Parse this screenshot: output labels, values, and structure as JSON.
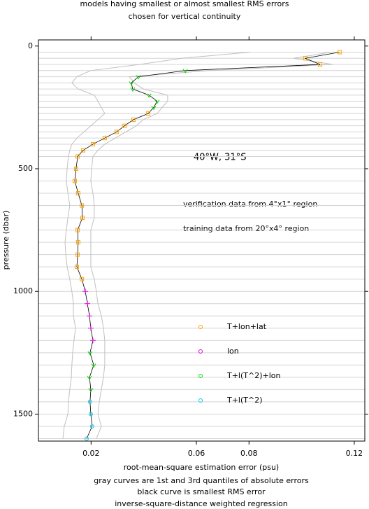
{
  "chart_data": {
    "type": "profile",
    "title": [
      "models having smallest or almost smallest RMS errors",
      "chosen for vertical continuity"
    ],
    "annotations": [
      "40°W, 31°S",
      "verification data from 4°x1° region",
      "training data from 20°x4° region"
    ],
    "xlabel": "root-mean-square estimation error (psu)",
    "notes": [
      "gray curves are 1st and 3rd quantiles of absolute errors",
      "black curve is smallest RMS error",
      "inverse-square-distance weighted regression"
    ],
    "ylabel": "pressure (dbar)",
    "xlim": [
      0,
      0.124
    ],
    "xticks": [
      0.02,
      0.06,
      0.08,
      0.12
    ],
    "ylim": [
      1610,
      -25
    ],
    "yticks": [
      0,
      500,
      1000,
      1500
    ],
    "grid": true,
    "pressure": [
      25,
      50,
      75,
      100,
      125,
      150,
      175,
      200,
      225,
      250,
      275,
      300,
      325,
      350,
      375,
      400,
      425,
      450,
      500,
      550,
      600,
      650,
      700,
      750,
      800,
      850,
      900,
      950,
      1000,
      1050,
      1100,
      1150,
      1200,
      1250,
      1300,
      1350,
      1400,
      1450,
      1500,
      1550,
      1600
    ],
    "best_line_color": "#000000",
    "quantile_color": "#c0c0c0",
    "quantile_curves": [
      {
        "values": [
          0.0804,
          0.0544,
          0.0385,
          0.0199,
          0.0146,
          0.0127,
          0.0151,
          0.0212,
          0.0226,
          0.0239,
          0.0252,
          0.0226,
          0.0199,
          0.0173,
          0.0146,
          0.0127,
          0.0119,
          0.0114,
          0.0109,
          0.0106,
          0.0112,
          0.0119,
          0.0112,
          0.0106,
          0.0101,
          0.0104,
          0.0109,
          0.0119,
          0.0127,
          0.0133,
          0.0133,
          0.0141,
          0.0135,
          0.013,
          0.0127,
          0.0125,
          0.0119,
          0.0114,
          0.0112,
          0.0098,
          0.0093
        ]
      },
      {
        "values": [
          0.1112,
          0.0969,
          0.1118,
          0.065,
          0.0345,
          0.0364,
          0.0398,
          0.0491,
          0.0491,
          0.047,
          0.0451,
          0.0398,
          0.0372,
          0.0332,
          0.0292,
          0.0252,
          0.0226,
          0.0207,
          0.0202,
          0.0199,
          0.0207,
          0.0212,
          0.0212,
          0.0199,
          0.0199,
          0.0199,
          0.0199,
          0.0212,
          0.022,
          0.0226,
          0.0239,
          0.0247,
          0.0252,
          0.0252,
          0.0252,
          0.0247,
          0.0239,
          0.0231,
          0.0226,
          0.0239,
          0.022
        ]
      }
    ],
    "series": [
      {
        "name": "T+lon+lat",
        "color": "#ffa500",
        "marker": "square",
        "values": [
          0.1144,
          0.1014,
          0.107,
          null,
          null,
          null,
          null,
          null,
          null,
          null,
          0.0417,
          0.0361,
          0.0327,
          0.0297,
          0.0252,
          0.0207,
          0.017,
          0.0149,
          0.0143,
          0.0138,
          0.0151,
          0.0165,
          0.0167,
          0.0149,
          0.0151,
          0.0149,
          0.0146,
          0.0165,
          null,
          null,
          null,
          null,
          null,
          null,
          null,
          null,
          null,
          null,
          null,
          null,
          null
        ]
      },
      {
        "name": "lon",
        "color": "#e000e0",
        "marker": "plus",
        "values": [
          null,
          null,
          null,
          null,
          null,
          null,
          null,
          null,
          null,
          null,
          null,
          null,
          null,
          null,
          null,
          null,
          null,
          null,
          null,
          null,
          null,
          null,
          null,
          null,
          null,
          null,
          null,
          null,
          0.0178,
          0.0186,
          0.0194,
          0.0199,
          0.0207,
          null,
          null,
          null,
          null,
          null,
          null,
          null,
          null
        ]
      },
      {
        "name": "T+l(T^2)+lon",
        "color": "#00dd00",
        "marker": "triangle",
        "values": [
          null,
          null,
          null,
          0.0558,
          0.038,
          0.0353,
          0.0358,
          0.042,
          0.0451,
          0.0438,
          null,
          null,
          null,
          null,
          null,
          null,
          null,
          null,
          null,
          null,
          null,
          null,
          null,
          null,
          null,
          null,
          null,
          null,
          null,
          null,
          null,
          null,
          null,
          0.0196,
          0.021,
          0.0194,
          0.0199,
          null,
          null,
          null,
          null
        ]
      },
      {
        "name": "T+l(T^2)",
        "color": "#00ccee",
        "marker": "circle",
        "values": [
          null,
          null,
          null,
          null,
          null,
          null,
          null,
          null,
          null,
          null,
          null,
          null,
          null,
          null,
          null,
          null,
          null,
          null,
          null,
          null,
          null,
          null,
          null,
          null,
          null,
          null,
          null,
          null,
          null,
          null,
          null,
          null,
          null,
          null,
          null,
          null,
          null,
          0.0196,
          0.0199,
          0.0204,
          0.0183
        ]
      }
    ]
  }
}
